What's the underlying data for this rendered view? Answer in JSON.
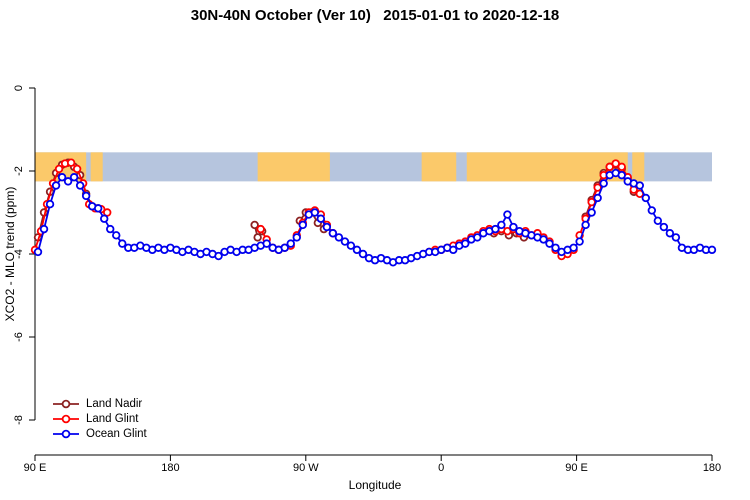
{
  "chart_data": {
    "type": "line",
    "title": "30N-40N October (Ver 10)   2015-01-01 to 2020-12-18",
    "xlabel": "Longitude",
    "ylabel": "XCO2 - MLO trend (ppm)",
    "x_axis": {
      "tick_positions_deg": [
        0,
        90,
        180,
        270,
        360,
        450
      ],
      "tick_labels": [
        "90 E",
        "180",
        "90 W",
        "0",
        "90 E",
        "180"
      ],
      "range_deg": [
        0,
        450
      ]
    },
    "y_axis": {
      "tick_labels": [
        "0",
        "-2",
        "-4",
        "-6",
        "-8"
      ],
      "tick_values": [
        0,
        -2,
        -4,
        -6,
        -8
      ],
      "range": [
        -8.8,
        0.6
      ],
      "grid": false
    },
    "map_band": {
      "y_top": -1.55,
      "y_bottom": -2.25,
      "ocean_color": "#b6c5de",
      "land_color": "#fbc96a",
      "land_segments_deg": [
        [
          0,
          34
        ],
        [
          37,
          45
        ],
        [
          148,
          196
        ],
        [
          257,
          280
        ],
        [
          287,
          394
        ],
        [
          397,
          405
        ]
      ]
    },
    "legend": {
      "position": "bottom-left"
    },
    "series": [
      {
        "name": "Land Nadir",
        "color": "#8b2222",
        "segments": [
          [
            [
              2,
              -3.6
            ],
            [
              6,
              -3.0
            ],
            [
              10,
              -2.5
            ],
            [
              14,
              -2.05
            ],
            [
              18,
              -1.85
            ],
            [
              22,
              -1.8
            ],
            [
              26,
              -1.9
            ],
            [
              30,
              -2.1
            ],
            [
              34,
              -2.55
            ],
            [
              38,
              -2.85
            ],
            [
              42,
              -2.9
            ]
          ],
          [
            [
              146,
              -3.3
            ],
            [
              148,
              -3.6
            ],
            [
              151,
              -3.45
            ]
          ],
          [
            [
              176,
              -3.2
            ],
            [
              180,
              -3.0
            ],
            [
              184,
              -3.0
            ],
            [
              188,
              -3.25
            ],
            [
              192,
              -3.4
            ]
          ],
          [
            [
              305,
              -3.5
            ],
            [
              310,
              -3.45
            ],
            [
              315,
              -3.55
            ],
            [
              320,
              -3.5
            ],
            [
              325,
              -3.6
            ]
          ],
          [
            [
              366,
              -3.1
            ],
            [
              370,
              -2.7
            ],
            [
              374,
              -2.35
            ],
            [
              378,
              -2.05
            ],
            [
              382,
              -1.9
            ],
            [
              386,
              -1.85
            ],
            [
              390,
              -1.95
            ],
            [
              394,
              -2.2
            ],
            [
              398,
              -2.5
            ]
          ]
        ]
      },
      {
        "name": "Land Glint",
        "color": "#ff0000",
        "segments": [
          [
            [
              0,
              -3.9
            ],
            [
              4,
              -3.45
            ],
            [
              8,
              -2.8
            ],
            [
              12,
              -2.3
            ],
            [
              16,
              -1.95
            ],
            [
              20,
              -1.82
            ],
            [
              24,
              -1.8
            ],
            [
              28,
              -1.95
            ],
            [
              32,
              -2.3
            ],
            [
              36,
              -2.8
            ],
            [
              40,
              -2.9
            ],
            [
              44,
              -2.92
            ],
            [
              48,
              -3.0
            ]
          ],
          [
            [
              150,
              -3.4
            ],
            [
              154,
              -3.65
            ],
            [
              158,
              -3.85
            ],
            [
              162,
              -3.9
            ],
            [
              166,
              -3.85
            ],
            [
              170,
              -3.8
            ],
            [
              174,
              -3.55
            ],
            [
              178,
              -3.25
            ],
            [
              182,
              -3.0
            ],
            [
              186,
              -2.95
            ],
            [
              190,
              -3.05
            ],
            [
              194,
              -3.3
            ],
            [
              198,
              -3.5
            ]
          ],
          [
            [
              262,
              -3.95
            ],
            [
              266,
              -3.9
            ],
            [
              270,
              -3.9
            ],
            [
              274,
              -3.85
            ],
            [
              278,
              -3.8
            ],
            [
              282,
              -3.75
            ],
            [
              286,
              -3.7
            ],
            [
              290,
              -3.6
            ],
            [
              294,
              -3.55
            ],
            [
              298,
              -3.45
            ],
            [
              302,
              -3.4
            ],
            [
              306,
              -3.45
            ],
            [
              310,
              -3.4
            ],
            [
              314,
              -3.45
            ],
            [
              318,
              -3.4
            ],
            [
              322,
              -3.5
            ],
            [
              326,
              -3.45
            ],
            [
              330,
              -3.55
            ],
            [
              334,
              -3.5
            ],
            [
              338,
              -3.6
            ],
            [
              342,
              -3.7
            ],
            [
              346,
              -3.9
            ],
            [
              350,
              -4.05
            ],
            [
              354,
              -4.0
            ],
            [
              358,
              -3.9
            ]
          ],
          [
            [
              362,
              -3.55
            ],
            [
              366,
              -3.15
            ],
            [
              370,
              -2.75
            ],
            [
              374,
              -2.4
            ],
            [
              378,
              -2.1
            ],
            [
              382,
              -1.9
            ],
            [
              386,
              -1.82
            ],
            [
              390,
              -1.9
            ],
            [
              394,
              -2.15
            ],
            [
              398,
              -2.45
            ],
            [
              402,
              -2.55
            ]
          ]
        ]
      },
      {
        "name": "Ocean Glint",
        "color": "#0000ee",
        "segments": [
          [
            [
              2,
              -3.95
            ],
            [
              6,
              -3.4
            ],
            [
              10,
              -2.8
            ],
            [
              14,
              -2.35
            ],
            [
              18,
              -2.15
            ],
            [
              22,
              -2.25
            ],
            [
              26,
              -2.15
            ],
            [
              30,
              -2.35
            ],
            [
              34,
              -2.6
            ],
            [
              38,
              -2.85
            ],
            [
              42,
              -2.9
            ],
            [
              46,
              -3.15
            ],
            [
              50,
              -3.4
            ],
            [
              54,
              -3.55
            ],
            [
              58,
              -3.75
            ],
            [
              62,
              -3.85
            ],
            [
              66,
              -3.85
            ],
            [
              70,
              -3.8
            ],
            [
              74,
              -3.85
            ],
            [
              78,
              -3.9
            ],
            [
              82,
              -3.85
            ],
            [
              86,
              -3.9
            ],
            [
              90,
              -3.85
            ],
            [
              94,
              -3.9
            ],
            [
              98,
              -3.95
            ],
            [
              102,
              -3.9
            ],
            [
              106,
              -3.95
            ],
            [
              110,
              -4.0
            ],
            [
              114,
              -3.95
            ],
            [
              118,
              -4.0
            ],
            [
              122,
              -4.05
            ],
            [
              126,
              -3.95
            ],
            [
              130,
              -3.9
            ],
            [
              134,
              -3.95
            ],
            [
              138,
              -3.9
            ],
            [
              142,
              -3.9
            ],
            [
              146,
              -3.85
            ],
            [
              150,
              -3.8
            ],
            [
              154,
              -3.75
            ],
            [
              158,
              -3.85
            ],
            [
              162,
              -3.9
            ],
            [
              166,
              -3.85
            ],
            [
              170,
              -3.75
            ],
            [
              174,
              -3.6
            ],
            [
              178,
              -3.3
            ],
            [
              182,
              -3.05
            ],
            [
              186,
              -3.0
            ],
            [
              190,
              -3.15
            ],
            [
              194,
              -3.35
            ],
            [
              198,
              -3.5
            ],
            [
              202,
              -3.6
            ],
            [
              206,
              -3.7
            ],
            [
              210,
              -3.8
            ],
            [
              214,
              -3.9
            ],
            [
              218,
              -4.0
            ],
            [
              222,
              -4.1
            ],
            [
              226,
              -4.15
            ],
            [
              230,
              -4.1
            ],
            [
              234,
              -4.15
            ],
            [
              238,
              -4.2
            ],
            [
              242,
              -4.15
            ],
            [
              246,
              -4.15
            ],
            [
              250,
              -4.1
            ],
            [
              254,
              -4.05
            ],
            [
              258,
              -4.0
            ],
            [
              262,
              -3.95
            ],
            [
              266,
              -3.95
            ],
            [
              270,
              -3.9
            ],
            [
              274,
              -3.85
            ],
            [
              278,
              -3.9
            ],
            [
              282,
              -3.8
            ],
            [
              286,
              -3.75
            ],
            [
              290,
              -3.65
            ],
            [
              294,
              -3.6
            ],
            [
              298,
              -3.5
            ],
            [
              302,
              -3.45
            ],
            [
              306,
              -3.4
            ],
            [
              310,
              -3.3
            ],
            [
              314,
              -3.05
            ],
            [
              318,
              -3.35
            ],
            [
              322,
              -3.45
            ],
            [
              326,
              -3.5
            ],
            [
              330,
              -3.55
            ],
            [
              334,
              -3.6
            ],
            [
              338,
              -3.65
            ],
            [
              342,
              -3.75
            ],
            [
              346,
              -3.85
            ],
            [
              350,
              -3.95
            ],
            [
              354,
              -3.9
            ],
            [
              358,
              -3.85
            ],
            [
              362,
              -3.7
            ],
            [
              366,
              -3.3
            ],
            [
              370,
              -3.0
            ],
            [
              374,
              -2.65
            ],
            [
              378,
              -2.3
            ],
            [
              382,
              -2.1
            ],
            [
              386,
              -2.05
            ],
            [
              390,
              -2.1
            ],
            [
              394,
              -2.25
            ],
            [
              398,
              -2.3
            ],
            [
              402,
              -2.35
            ],
            [
              406,
              -2.65
            ],
            [
              410,
              -2.95
            ],
            [
              414,
              -3.2
            ],
            [
              418,
              -3.35
            ],
            [
              422,
              -3.5
            ],
            [
              426,
              -3.6
            ],
            [
              430,
              -3.85
            ],
            [
              434,
              -3.9
            ],
            [
              438,
              -3.9
            ],
            [
              442,
              -3.85
            ],
            [
              446,
              -3.9
            ],
            [
              450,
              -3.9
            ]
          ]
        ]
      }
    ]
  }
}
